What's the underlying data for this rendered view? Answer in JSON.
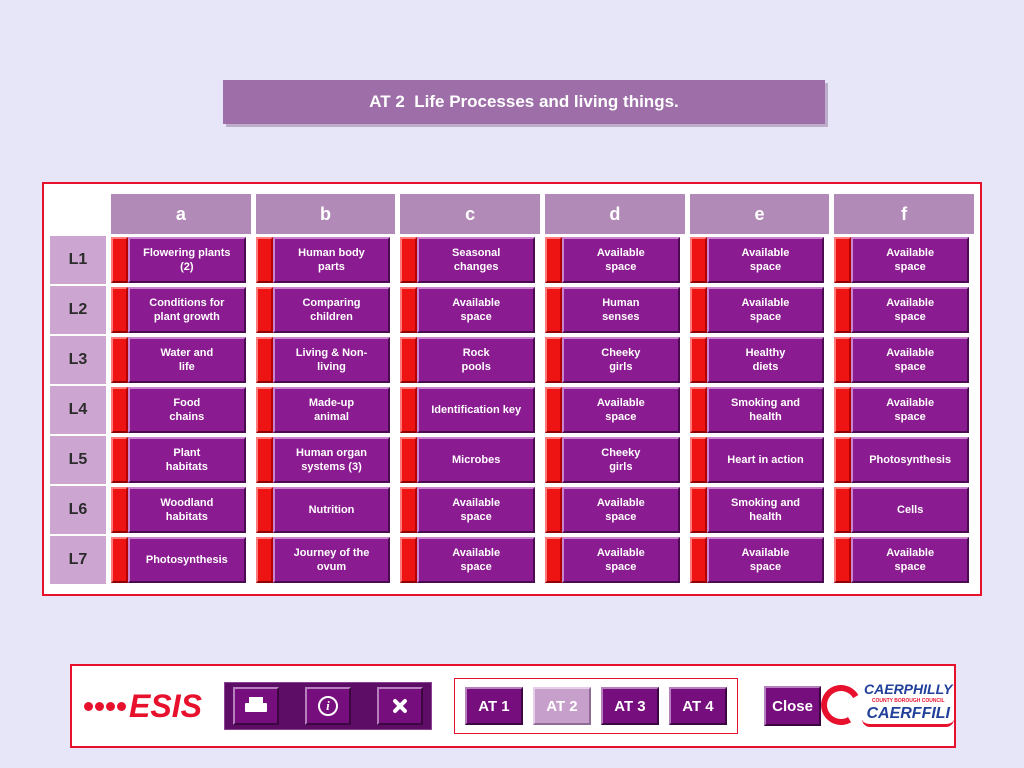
{
  "title": "AT 2  Life Processes and living things.",
  "table": {
    "column_headers": [
      "a",
      "b",
      "c",
      "d",
      "e",
      "f"
    ],
    "rows": [
      {
        "label": "L1",
        "cells": [
          "Flowering plants\n(2)",
          "Human body\nparts",
          "Seasonal\nchanges",
          "Available\nspace",
          "Available\nspace",
          "Available\nspace"
        ]
      },
      {
        "label": "L2",
        "cells": [
          "Conditions for\nplant growth",
          "Comparing\nchildren",
          "Available\nspace",
          "Human\nsenses",
          "Available\nspace",
          "Available\nspace"
        ]
      },
      {
        "label": "L3",
        "cells": [
          "Water and\nlife",
          "Living & Non-\nliving",
          "Rock\npools",
          "Cheeky\ngirls",
          "Healthy\ndiets",
          "Available\nspace"
        ]
      },
      {
        "label": "L4",
        "cells": [
          "Food\nchains",
          "Made-up\nanimal",
          "Identification key",
          "Available\nspace",
          "Smoking and\nhealth",
          "Available\nspace"
        ]
      },
      {
        "label": "L5",
        "cells": [
          "Plant\nhabitats",
          "Human organ\nsystems (3)",
          "Microbes",
          "Cheeky\ngirls",
          "Heart in action",
          "Photosynthesis"
        ]
      },
      {
        "label": "L6",
        "cells": [
          "Woodland\nhabitats",
          "Nutrition",
          "Available\nspace",
          "Available\nspace",
          "Smoking and\nhealth",
          "Cells"
        ]
      },
      {
        "label": "L7",
        "cells": [
          "Photosynthesis",
          "Journey of the\novum",
          "Available\nspace",
          "Available\nspace",
          "Available\nspace",
          "Available\nspace"
        ]
      }
    ]
  },
  "footer": {
    "logo_text": "ESIS",
    "icon_buttons": [
      {
        "id": "print",
        "icon": "printer-icon"
      },
      {
        "id": "info",
        "icon": "info-icon",
        "glyph": "i"
      },
      {
        "id": "tools",
        "icon": "tools-icon"
      }
    ],
    "at_tabs": [
      {
        "label": "AT 1",
        "selected": false
      },
      {
        "label": "AT 2",
        "selected": true
      },
      {
        "label": "AT 3",
        "selected": false
      },
      {
        "label": "AT 4",
        "selected": false
      }
    ],
    "close_label": "Close",
    "council_logo": {
      "line1": "CAERPHILLY",
      "line2": "COUNTY BOROUGH COUNCIL",
      "line3": "CAERFFILI"
    }
  },
  "colors": {
    "background": "#e6e6f8",
    "title_bg": "#9d6ea7",
    "header_bg": "#b28ab7",
    "row_label_bg": "#cda5d1",
    "cell_bg": "#8b1b90",
    "red_strip": "#ee1414",
    "border_red": "#e8112d",
    "button_bg": "#770e7d",
    "selected_tab_bg": "#c79fcb",
    "esis_red": "#e8112d",
    "council_blue": "#21409a"
  }
}
